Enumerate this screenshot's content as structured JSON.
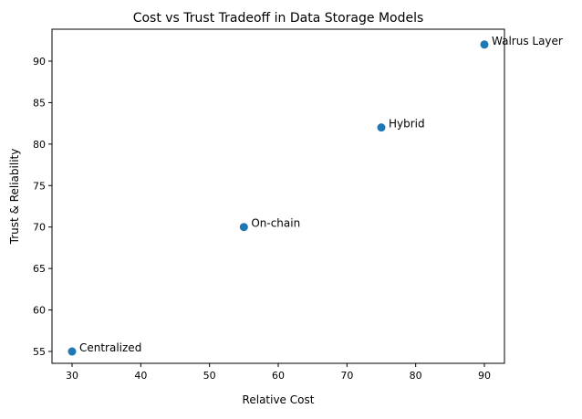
{
  "chart_data": {
    "type": "scatter",
    "title": "Cost vs Trust Tradeoff in Data Storage Models",
    "xlabel": "Relative Cost",
    "ylabel": "Trust & Reliability",
    "xlim": [
      27.08,
      92.92
    ],
    "ylim": [
      53.57,
      93.85
    ],
    "xticks": [
      30,
      40,
      50,
      60,
      70,
      80,
      90
    ],
    "yticks": [
      55,
      60,
      65,
      70,
      75,
      80,
      85,
      90
    ],
    "grid": false,
    "color": "#1f77b4",
    "points": [
      {
        "label": "Centralized",
        "x": 30,
        "y": 55
      },
      {
        "label": "On-chain",
        "x": 55,
        "y": 70
      },
      {
        "label": "Hybrid",
        "x": 75,
        "y": 82
      },
      {
        "label": "Walrus Layer",
        "x": 90,
        "y": 92
      }
    ]
  }
}
